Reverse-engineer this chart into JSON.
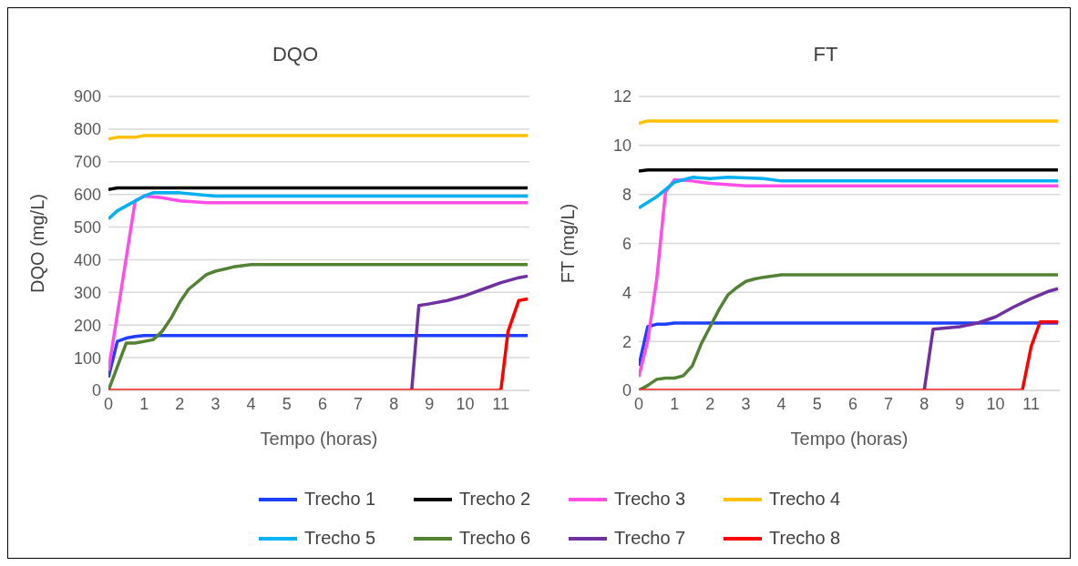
{
  "chart_data": [
    {
      "type": "line",
      "title": "DQO",
      "xlabel": "Tempo (horas)",
      "ylabel": "DQO (mg/L)",
      "xlim": [
        0,
        11.8
      ],
      "xticks": [
        0,
        1,
        2,
        3,
        4,
        5,
        6,
        7,
        8,
        9,
        10,
        11
      ],
      "ylim": [
        0,
        900
      ],
      "yticks": [
        0,
        100,
        200,
        300,
        400,
        500,
        600,
        700,
        800,
        900
      ],
      "grid": "y",
      "legend": "bottom",
      "series": [
        {
          "name": "Trecho 1",
          "color": "#1f3fff",
          "x": [
            0,
            0.25,
            0.5,
            0.75,
            1,
            11.75
          ],
          "values": [
            40,
            150,
            160,
            165,
            168,
            168
          ]
        },
        {
          "name": "Trecho 2",
          "color": "#000000",
          "x": [
            0,
            0.25,
            11.75
          ],
          "values": [
            615,
            620,
            620
          ]
        },
        {
          "name": "Trecho 3",
          "color": "#ff4de6",
          "x": [
            0,
            0.75,
            1,
            1.5,
            2,
            2.75,
            11.75
          ],
          "values": [
            60,
            580,
            595,
            590,
            580,
            575,
            575
          ]
        },
        {
          "name": "Trecho 4",
          "color": "#ffc000",
          "x": [
            0,
            0.25,
            0.75,
            1,
            11.75
          ],
          "values": [
            770,
            775,
            775,
            780,
            780
          ]
        },
        {
          "name": "Trecho 5",
          "color": "#00b0f0",
          "x": [
            0,
            0.25,
            0.75,
            1,
            1.25,
            2,
            2.5,
            3,
            11.75
          ],
          "values": [
            525,
            550,
            580,
            595,
            605,
            605,
            600,
            595,
            595
          ]
        },
        {
          "name": "Trecho 6",
          "color": "#548235",
          "x": [
            0,
            0.5,
            0.75,
            1.25,
            1.5,
            1.75,
            2,
            2.25,
            2.75,
            3,
            3.5,
            4,
            11.75
          ],
          "values": [
            0,
            145,
            145,
            155,
            180,
            220,
            270,
            310,
            355,
            365,
            378,
            385,
            385
          ]
        },
        {
          "name": "Trecho 7",
          "color": "#7030a0",
          "x": [
            8.5,
            8.7,
            9,
            9.5,
            10,
            10.5,
            11,
            11.5,
            11.75
          ],
          "values": [
            0,
            260,
            265,
            275,
            290,
            310,
            330,
            345,
            350
          ]
        },
        {
          "name": "Trecho 8",
          "color": "#ff0000",
          "x": [
            0,
            11,
            11.2,
            11.5,
            11.75
          ],
          "values": [
            0,
            0,
            180,
            275,
            280
          ]
        }
      ]
    },
    {
      "type": "line",
      "title": "FT",
      "xlabel": "Tempo (horas)",
      "ylabel": "FT (mg/L)",
      "xlim": [
        0,
        11.8
      ],
      "xticks": [
        0,
        1,
        2,
        3,
        4,
        5,
        6,
        7,
        8,
        9,
        10,
        11
      ],
      "ylim": [
        0,
        12
      ],
      "yticks": [
        0,
        2,
        4,
        6,
        8,
        10,
        12
      ],
      "grid": "y",
      "legend": "bottom",
      "series": [
        {
          "name": "Trecho 1",
          "color": "#1f3fff",
          "x": [
            0,
            0.25,
            0.5,
            0.75,
            1,
            11.75
          ],
          "values": [
            1.0,
            2.6,
            2.7,
            2.7,
            2.75,
            2.75
          ]
        },
        {
          "name": "Trecho 2",
          "color": "#000000",
          "x": [
            0,
            0.25,
            11.75
          ],
          "values": [
            8.95,
            9.0,
            9.0
          ]
        },
        {
          "name": "Trecho 3",
          "color": "#ff4de6",
          "x": [
            0,
            0.25,
            0.5,
            0.75,
            1,
            1.5,
            2,
            3,
            11.75
          ],
          "values": [
            0.55,
            2.0,
            4.5,
            8.1,
            8.6,
            8.55,
            8.45,
            8.35,
            8.35
          ]
        },
        {
          "name": "Trecho 4",
          "color": "#ffc000",
          "x": [
            0,
            0.25,
            11.75
          ],
          "values": [
            10.9,
            11.0,
            11.0
          ]
        },
        {
          "name": "Trecho 5",
          "color": "#00b0f0",
          "x": [
            0,
            0.5,
            1,
            1.5,
            2,
            2.5,
            3.5,
            4,
            11.75
          ],
          "values": [
            7.45,
            7.9,
            8.5,
            8.7,
            8.65,
            8.7,
            8.65,
            8.55,
            8.55
          ]
        },
        {
          "name": "Trecho 6",
          "color": "#548235",
          "x": [
            0,
            0.25,
            0.5,
            0.75,
            1,
            1.25,
            1.5,
            1.75,
            2,
            2.25,
            2.5,
            2.75,
            3,
            3.25,
            3.5,
            4,
            11.75
          ],
          "values": [
            0,
            0.2,
            0.45,
            0.5,
            0.5,
            0.6,
            1.0,
            1.9,
            2.6,
            3.3,
            3.9,
            4.2,
            4.45,
            4.55,
            4.62,
            4.72,
            4.72
          ]
        },
        {
          "name": "Trecho 7",
          "color": "#7030a0",
          "x": [
            8.0,
            8.25,
            9,
            9.5,
            10,
            10.5,
            11,
            11.5,
            11.75
          ],
          "values": [
            0,
            2.5,
            2.6,
            2.75,
            3.0,
            3.4,
            3.75,
            4.05,
            4.15
          ]
        },
        {
          "name": "Trecho 8",
          "color": "#ff0000",
          "x": [
            0,
            10.75,
            11,
            11.25,
            11.75
          ],
          "values": [
            0,
            0,
            1.8,
            2.8,
            2.8
          ]
        }
      ]
    }
  ]
}
